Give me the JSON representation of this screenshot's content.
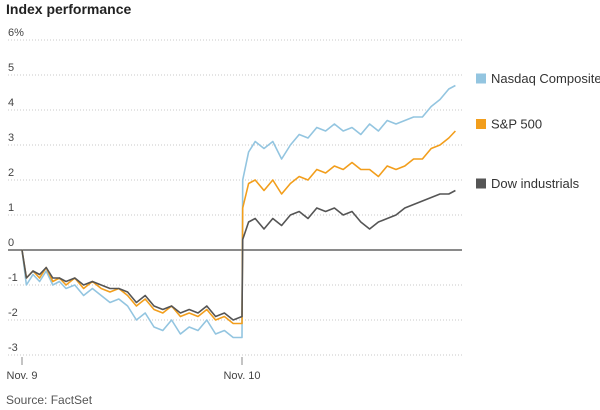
{
  "chart_data": {
    "type": "line",
    "title": "Index performance",
    "source": "Source: FactSet",
    "x_labels": [
      "Nov. 9",
      "Nov. 10"
    ],
    "y_ticks": [
      {
        "value": 6,
        "label": "6%"
      },
      {
        "value": 5,
        "label": "5"
      },
      {
        "value": 4,
        "label": "4"
      },
      {
        "value": 3,
        "label": "3"
      },
      {
        "value": 2,
        "label": "2"
      },
      {
        "value": 1,
        "label": "1"
      },
      {
        "value": 0,
        "label": "0"
      },
      {
        "value": -1,
        "label": "-1"
      },
      {
        "value": -2,
        "label": "-2"
      },
      {
        "value": -3,
        "label": "-3"
      }
    ],
    "ylim": [
      -3,
      6
    ],
    "grid": "horizontal dotted",
    "legend_position": "right",
    "x_ticks": [
      0,
      1
    ],
    "x_domain": [
      0,
      2
    ],
    "series": [
      {
        "name": "Nasdaq Composite",
        "color": "#93c5e0",
        "x": [
          0,
          0.02,
          0.05,
          0.08,
          0.11,
          0.14,
          0.17,
          0.2,
          0.24,
          0.28,
          0.32,
          0.36,
          0.4,
          0.44,
          0.48,
          0.52,
          0.56,
          0.6,
          0.64,
          0.68,
          0.72,
          0.76,
          0.8,
          0.84,
          0.88,
          0.92,
          0.96,
          1.0,
          1.003,
          1.03,
          1.06,
          1.1,
          1.14,
          1.18,
          1.22,
          1.26,
          1.3,
          1.34,
          1.38,
          1.42,
          1.46,
          1.5,
          1.54,
          1.58,
          1.62,
          1.66,
          1.7,
          1.74,
          1.78,
          1.82,
          1.86,
          1.9,
          1.94,
          1.97
        ],
        "values": [
          0,
          -1.0,
          -0.7,
          -0.9,
          -0.6,
          -1.0,
          -0.9,
          -1.1,
          -1.0,
          -1.3,
          -1.1,
          -1.3,
          -1.5,
          -1.4,
          -1.6,
          -2.0,
          -1.8,
          -2.2,
          -2.3,
          -2.0,
          -2.4,
          -2.2,
          -2.3,
          -2.0,
          -2.4,
          -2.3,
          -2.5,
          -2.5,
          2.0,
          2.8,
          3.1,
          2.9,
          3.1,
          2.6,
          3.0,
          3.3,
          3.2,
          3.5,
          3.4,
          3.6,
          3.4,
          3.5,
          3.3,
          3.6,
          3.4,
          3.7,
          3.6,
          3.7,
          3.8,
          3.8,
          4.1,
          4.3,
          4.6,
          4.7
        ]
      },
      {
        "name": "S&P 500",
        "color": "#f29e1c",
        "x": [
          0,
          0.02,
          0.05,
          0.08,
          0.11,
          0.14,
          0.17,
          0.2,
          0.24,
          0.28,
          0.32,
          0.36,
          0.4,
          0.44,
          0.48,
          0.52,
          0.56,
          0.6,
          0.64,
          0.68,
          0.72,
          0.76,
          0.8,
          0.84,
          0.88,
          0.92,
          0.96,
          1.0,
          1.003,
          1.03,
          1.06,
          1.1,
          1.14,
          1.18,
          1.22,
          1.26,
          1.3,
          1.34,
          1.38,
          1.42,
          1.46,
          1.5,
          1.54,
          1.58,
          1.62,
          1.66,
          1.7,
          1.74,
          1.78,
          1.82,
          1.86,
          1.9,
          1.94,
          1.97
        ],
        "values": [
          0,
          -0.8,
          -0.6,
          -0.8,
          -0.5,
          -0.9,
          -0.8,
          -1.0,
          -0.8,
          -1.1,
          -0.9,
          -1.1,
          -1.2,
          -1.1,
          -1.3,
          -1.6,
          -1.4,
          -1.7,
          -1.8,
          -1.6,
          -1.9,
          -1.8,
          -1.9,
          -1.7,
          -2.0,
          -1.9,
          -2.1,
          -2.1,
          1.2,
          1.9,
          2.0,
          1.7,
          2.0,
          1.6,
          1.9,
          2.1,
          2.0,
          2.3,
          2.2,
          2.4,
          2.3,
          2.5,
          2.3,
          2.3,
          2.1,
          2.4,
          2.3,
          2.4,
          2.6,
          2.6,
          2.9,
          3.0,
          3.2,
          3.4
        ]
      },
      {
        "name": "Dow industrials",
        "color": "#555555",
        "x": [
          0,
          0.02,
          0.05,
          0.08,
          0.11,
          0.14,
          0.17,
          0.2,
          0.24,
          0.28,
          0.32,
          0.36,
          0.4,
          0.44,
          0.48,
          0.52,
          0.56,
          0.6,
          0.64,
          0.68,
          0.72,
          0.76,
          0.8,
          0.84,
          0.88,
          0.92,
          0.96,
          1.0,
          1.003,
          1.03,
          1.06,
          1.1,
          1.14,
          1.18,
          1.22,
          1.26,
          1.3,
          1.34,
          1.38,
          1.42,
          1.46,
          1.5,
          1.54,
          1.58,
          1.62,
          1.66,
          1.7,
          1.74,
          1.78,
          1.82,
          1.86,
          1.9,
          1.94,
          1.97
        ],
        "values": [
          0,
          -0.8,
          -0.6,
          -0.7,
          -0.5,
          -0.8,
          -0.8,
          -0.9,
          -0.8,
          -1.0,
          -0.9,
          -1.0,
          -1.1,
          -1.1,
          -1.2,
          -1.5,
          -1.3,
          -1.6,
          -1.7,
          -1.6,
          -1.8,
          -1.7,
          -1.8,
          -1.6,
          -1.9,
          -1.8,
          -2.0,
          -1.9,
          0.3,
          0.8,
          0.9,
          0.6,
          0.9,
          0.7,
          1.0,
          1.1,
          0.9,
          1.2,
          1.1,
          1.2,
          1.0,
          1.1,
          0.8,
          0.6,
          0.8,
          0.9,
          1.0,
          1.2,
          1.3,
          1.4,
          1.5,
          1.6,
          1.6,
          1.7
        ]
      }
    ]
  }
}
